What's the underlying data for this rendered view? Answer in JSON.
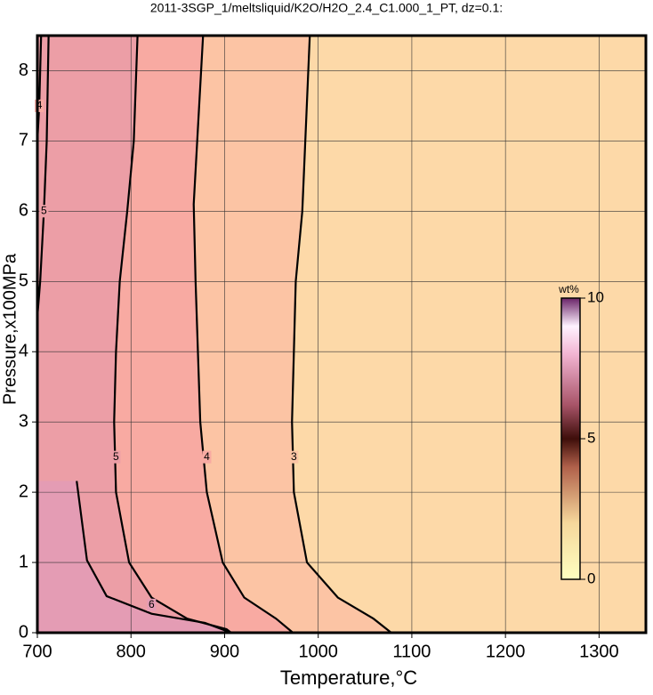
{
  "chart_data": {
    "type": "contour",
    "title": "2011-3SGP_1/meltsliquid/K2O/H2O_2.4_C1.000_1_PT, dz=0.1:",
    "x_label": "Temperature,°C",
    "y_label": "Pressure,x100MPa",
    "xlim": [
      700,
      1350
    ],
    "ylim": [
      0,
      8.5
    ],
    "xticks": [
      700,
      800,
      900,
      1000,
      1100,
      1200,
      1300
    ],
    "yticks": [
      0,
      1,
      2,
      3,
      4,
      5,
      6,
      7,
      8
    ],
    "grid": true,
    "contours": [
      {
        "level": 3,
        "x": [
          991,
          983,
          976,
          972,
          974,
          988,
          1021,
          1059,
          1078
        ],
        "y": [
          8.5,
          6,
          5,
          3,
          2,
          1,
          0.5,
          0.2,
          0
        ]
      },
      {
        "level": 4,
        "x": [
          877,
          867,
          869,
          874,
          881,
          898,
          921,
          955,
          973
        ],
        "y": [
          8.5,
          6.1,
          5,
          3,
          2,
          1,
          0.5,
          0.2,
          0
        ]
      },
      {
        "level": 5,
        "x": [
          807,
          803,
          796,
          788,
          784,
          782,
          784,
          798,
          822,
          860,
          902,
          907
        ],
        "y": [
          8.5,
          7,
          6,
          5,
          4,
          3,
          2,
          1,
          0.5,
          0.2,
          0.05,
          0
        ]
      },
      {
        "level": 6,
        "x": [
          742,
          753,
          774,
          822,
          879,
          907
        ],
        "y": [
          2.16,
          1.03,
          0.52,
          0.27,
          0.14,
          0
        ]
      },
      {
        "level": 5,
        "x": [
          712,
          710,
          707,
          703,
          700
        ],
        "y": [
          8.5,
          7,
          6,
          5,
          4.5
        ]
      },
      {
        "level": 4,
        "x": [
          704,
          702,
          700
        ],
        "y": [
          8.5,
          7.5,
          7
        ]
      }
    ],
    "colorbar": {
      "label": "wt%",
      "lim": [
        0,
        10
      ],
      "ticks": [
        0,
        5,
        10
      ]
    }
  }
}
